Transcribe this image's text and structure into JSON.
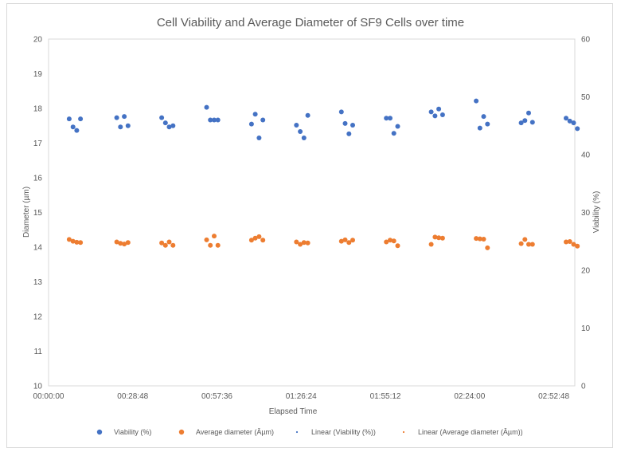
{
  "chart_data": {
    "type": "scatter",
    "title": "Cell Viability and Average Diameter of SF9 Cells over time",
    "xlabel": "Elapsed Time",
    "ylabel_left": "Diameter (µm)",
    "ylabel_right": "Viability (%)",
    "x_unit": "hh:mm:ss",
    "xlim": [
      "00:00:00",
      "03:00:00"
    ],
    "x_ticks": [
      "00:00:00",
      "00:28:48",
      "00:57:36",
      "01:26:24",
      "01:55:12",
      "02:24:00",
      "02:52:48"
    ],
    "ylim_left": [
      10,
      20
    ],
    "y_ticks_left": [
      "10",
      "11",
      "12",
      "13",
      "14",
      "15",
      "16",
      "17",
      "18",
      "19",
      "20"
    ],
    "ylim_right": [
      0,
      60
    ],
    "y_ticks_right": [
      "0",
      "10",
      "20",
      "30",
      "40",
      "50",
      "60"
    ],
    "grid": false,
    "legend_position": "bottom",
    "series": [
      {
        "name": "Viability (%)",
        "axis": "right",
        "color": "#4472c4",
        "points": [
          [
            "00:07:03",
            46.2
          ],
          [
            "00:08:21",
            44.8
          ],
          [
            "00:09:39",
            44.2
          ],
          [
            "00:10:56",
            46.2
          ],
          [
            "00:23:18",
            46.4
          ],
          [
            "00:24:36",
            44.8
          ],
          [
            "00:25:54",
            46.6
          ],
          [
            "00:27:11",
            45.0
          ],
          [
            "00:38:41",
            46.4
          ],
          [
            "00:39:58",
            45.5
          ],
          [
            "00:41:16",
            44.8
          ],
          [
            "00:42:33",
            45.0
          ],
          [
            "00:54:03",
            48.2
          ],
          [
            "00:55:20",
            46.0
          ],
          [
            "00:56:38",
            46.0
          ],
          [
            "00:57:55",
            46.0
          ],
          [
            "01:09:25",
            45.3
          ],
          [
            "01:10:42",
            47.0
          ],
          [
            "01:12:00",
            42.9
          ],
          [
            "01:13:18",
            46.0
          ],
          [
            "01:24:47",
            45.1
          ],
          [
            "01:26:05",
            44.0
          ],
          [
            "01:27:22",
            42.9
          ],
          [
            "01:28:40",
            46.8
          ],
          [
            "01:40:09",
            47.4
          ],
          [
            "01:41:27",
            45.4
          ],
          [
            "01:42:44",
            43.6
          ],
          [
            "01:44:02",
            45.1
          ],
          [
            "01:55:31",
            46.3
          ],
          [
            "01:56:49",
            46.3
          ],
          [
            "01:58:06",
            43.7
          ],
          [
            "01:59:24",
            44.9
          ],
          [
            "02:10:53",
            47.4
          ],
          [
            "02:12:11",
            46.7
          ],
          [
            "02:13:28",
            47.9
          ],
          [
            "02:14:46",
            46.9
          ],
          [
            "02:26:15",
            49.3
          ],
          [
            "02:27:33",
            44.6
          ],
          [
            "02:28:50",
            46.6
          ],
          [
            "02:30:08",
            45.3
          ],
          [
            "02:41:38",
            45.5
          ],
          [
            "02:42:55",
            45.9
          ],
          [
            "02:44:13",
            47.2
          ],
          [
            "02:45:30",
            45.6
          ],
          [
            "02:57:00",
            46.3
          ],
          [
            "02:58:17",
            45.8
          ],
          [
            "02:59:35",
            45.5
          ],
          [
            "03:00:52",
            44.5
          ]
        ]
      },
      {
        "name": "Average diameter (Âµm)",
        "axis": "left",
        "color": "#ed7d31",
        "points": [
          [
            "00:07:03",
            14.22
          ],
          [
            "00:08:21",
            14.17
          ],
          [
            "00:09:39",
            14.14
          ],
          [
            "00:10:56",
            14.13
          ],
          [
            "00:23:18",
            14.15
          ],
          [
            "00:24:36",
            14.11
          ],
          [
            "00:25:54",
            14.09
          ],
          [
            "00:27:11",
            14.13
          ],
          [
            "00:38:41",
            14.12
          ],
          [
            "00:39:58",
            14.05
          ],
          [
            "00:41:16",
            14.15
          ],
          [
            "00:42:33",
            14.05
          ],
          [
            "00:54:03",
            14.21
          ],
          [
            "00:55:20",
            14.05
          ],
          [
            "00:56:38",
            14.32
          ],
          [
            "00:57:55",
            14.05
          ],
          [
            "01:09:25",
            14.2
          ],
          [
            "01:10:42",
            14.26
          ],
          [
            "01:12:00",
            14.3
          ],
          [
            "01:13:18",
            14.2
          ],
          [
            "01:24:47",
            14.15
          ],
          [
            "01:26:05",
            14.08
          ],
          [
            "01:27:22",
            14.13
          ],
          [
            "01:28:40",
            14.12
          ],
          [
            "01:40:09",
            14.17
          ],
          [
            "01:41:27",
            14.21
          ],
          [
            "01:42:44",
            14.13
          ],
          [
            "01:44:02",
            14.2
          ],
          [
            "01:55:31",
            14.15
          ],
          [
            "01:56:49",
            14.2
          ],
          [
            "01:58:06",
            14.18
          ],
          [
            "01:59:24",
            14.04
          ],
          [
            "02:10:53",
            14.08
          ],
          [
            "02:12:11",
            14.29
          ],
          [
            "02:13:28",
            14.27
          ],
          [
            "02:14:46",
            14.26
          ],
          [
            "02:26:15",
            14.25
          ],
          [
            "02:27:33",
            14.24
          ],
          [
            "02:28:50",
            14.23
          ],
          [
            "02:30:08",
            13.98
          ],
          [
            "02:41:38",
            14.1
          ],
          [
            "02:42:55",
            14.22
          ],
          [
            "02:44:13",
            14.08
          ],
          [
            "02:45:30",
            14.08
          ],
          [
            "02:57:00",
            14.15
          ],
          [
            "02:58:17",
            14.16
          ],
          [
            "02:59:35",
            14.08
          ],
          [
            "03:00:52",
            14.03
          ]
        ]
      }
    ],
    "legend": [
      {
        "label": "Viability (%)",
        "marker": "dot",
        "color": "#4472c4"
      },
      {
        "label": "Average diameter (Âµm)",
        "marker": "dot",
        "color": "#ed7d31"
      },
      {
        "label": "Linear (Viability (%))",
        "marker": "tiny",
        "color": "#4472c4"
      },
      {
        "label": "Linear (Average diameter (Âµm))",
        "marker": "tiny",
        "color": "#ed7d31"
      }
    ]
  }
}
